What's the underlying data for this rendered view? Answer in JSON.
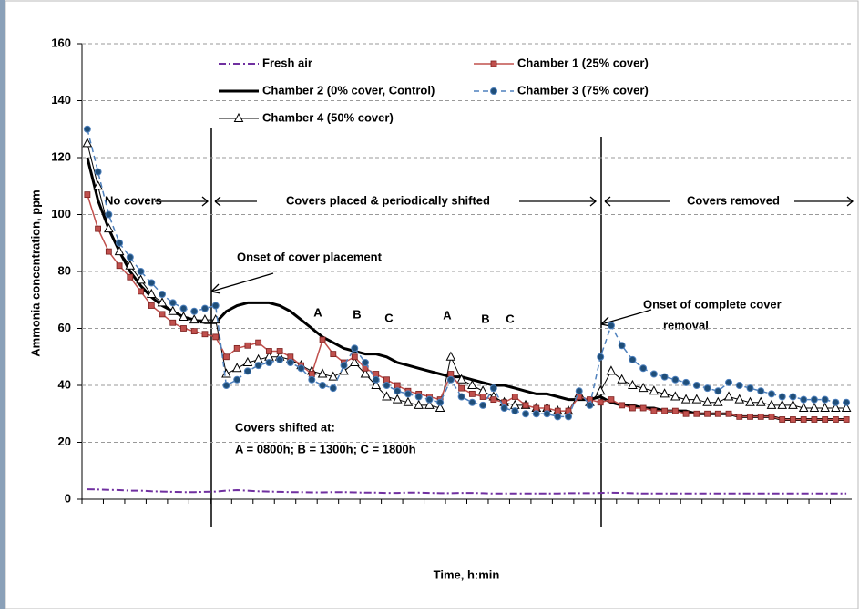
{
  "chart_data": {
    "type": "line",
    "x_label": "Time, h:min",
    "y_label": "Ammonia concentration, ppm",
    "categories": [
      null,
      null,
      null,
      null,
      null,
      null,
      null,
      null,
      null,
      null,
      null,
      null,
      null,
      null,
      null,
      null,
      null,
      null,
      null,
      null,
      null,
      null,
      null,
      null,
      null,
      null,
      null,
      null,
      null,
      null,
      null,
      null,
      null,
      null,
      null,
      null,
      null,
      null,
      null,
      null,
      null,
      null,
      null,
      null,
      null,
      null,
      null,
      null,
      null,
      null,
      null,
      null,
      null,
      null,
      null,
      null,
      null,
      null,
      null,
      null,
      null,
      null,
      null,
      null,
      null,
      null,
      null,
      null,
      null,
      null,
      null,
      null
    ],
    "series": [
      {
        "name": "Fresh air",
        "color": "#7030a0",
        "marker": "none",
        "dash": "dashdot",
        "width": 2,
        "values": [
          3.5,
          3.4,
          3.3,
          3.2,
          3,
          3,
          2.8,
          2.7,
          2.6,
          2.5,
          2.5,
          2.6,
          2.7,
          3,
          3.2,
          3,
          2.8,
          2.7,
          2.6,
          2.5,
          2.5,
          2.4,
          2.4,
          2.5,
          2.5,
          2.4,
          2.3,
          2.3,
          2.2,
          2.2,
          2.3,
          2.3,
          2.2,
          2.1,
          2.1,
          2.2,
          2.2,
          2.1,
          2,
          2,
          2,
          2,
          2,
          2,
          2,
          2.1,
          2.1,
          2.1,
          2.2,
          2.3,
          2.2,
          2.1,
          2,
          2,
          2,
          2,
          2,
          2,
          2,
          2,
          2,
          2,
          2,
          2,
          2,
          2,
          2,
          2,
          2,
          2,
          2,
          2
        ]
      },
      {
        "name": "Chamber 1 (25% cover)",
        "color": "#c0504d",
        "marker": "square",
        "dash": "solid",
        "width": 1.5,
        "values": [
          107,
          95,
          87,
          82,
          78,
          73,
          68,
          65,
          62,
          60,
          59,
          58,
          57,
          50,
          53,
          54,
          55,
          52,
          52,
          50,
          47,
          44,
          56,
          51,
          48,
          50,
          46,
          44,
          42,
          40,
          38,
          37,
          36,
          35,
          44,
          39,
          37,
          36,
          35,
          34,
          36,
          33,
          32,
          32,
          31,
          31,
          36,
          35,
          34,
          35,
          33,
          32,
          32,
          31,
          31,
          31,
          30,
          30,
          30,
          30,
          30,
          29,
          29,
          29,
          29,
          28,
          28,
          28,
          28,
          28,
          28,
          28
        ]
      },
      {
        "name": "Chamber 2 (0% cover, Control)",
        "color": "#000000",
        "marker": "none",
        "dash": "solid",
        "width": 3,
        "values": [
          120,
          105,
          95,
          87,
          80,
          75,
          71,
          68,
          66,
          64,
          63,
          62,
          62,
          66,
          68,
          69,
          69,
          69,
          68,
          66,
          63,
          60,
          57,
          55,
          53,
          52,
          51,
          51,
          50,
          48,
          47,
          46,
          45,
          44,
          43,
          43,
          42,
          41,
          40,
          40,
          39,
          38,
          37,
          37,
          36,
          35,
          35,
          35,
          36,
          34,
          33,
          33,
          32,
          32,
          31,
          31,
          31,
          30,
          30,
          30,
          30,
          29,
          29,
          29,
          29,
          28,
          28,
          28,
          28,
          28,
          28,
          28
        ]
      },
      {
        "name": "Chamber 3 (75% cover)",
        "color": "#4f81bd",
        "marker": "circle",
        "dash": "dashed",
        "width": 1.5,
        "values": [
          130,
          115,
          100,
          90,
          85,
          80,
          76,
          72,
          69,
          67,
          66,
          67,
          68,
          40,
          42,
          45,
          47,
          48,
          49,
          48,
          46,
          42,
          40,
          39,
          47,
          53,
          48,
          42,
          40,
          38,
          37,
          36,
          35,
          34,
          42,
          36,
          34,
          33,
          39,
          32,
          31,
          30,
          30,
          30,
          29,
          29,
          38,
          33,
          50,
          61,
          54,
          49,
          46,
          44,
          43,
          42,
          41,
          40,
          39,
          38,
          41,
          40,
          39,
          38,
          37,
          36,
          36,
          35,
          35,
          35,
          34,
          34
        ]
      },
      {
        "name": "Chamber 4 (50% cover)",
        "color": "#000000",
        "marker": "triangle",
        "dash": "solid",
        "width": 1,
        "values": [
          125,
          110,
          95,
          87,
          82,
          77,
          72,
          69,
          66,
          64,
          63,
          63,
          63,
          44,
          46,
          48,
          49,
          50,
          50,
          49,
          47,
          45,
          44,
          43,
          45,
          48,
          44,
          40,
          36,
          35,
          34,
          33,
          33,
          32,
          50,
          42,
          40,
          38,
          36,
          34,
          33,
          33,
          32,
          32,
          31,
          31,
          37,
          34,
          38,
          45,
          42,
          40,
          39,
          38,
          37,
          36,
          35,
          35,
          34,
          34,
          36,
          35,
          34,
          34,
          33,
          33,
          33,
          32,
          32,
          32,
          32,
          32
        ]
      }
    ],
    "ylim": [
      0,
      160
    ],
    "yticks": [
      0,
      20,
      40,
      60,
      80,
      100,
      120,
      140,
      160
    ],
    "grid": true,
    "annotations": [
      "No covers",
      "Covers placed & periodically shifted",
      "Covers removed",
      "Onset of cover placement",
      "Onset of complete cover",
      "removal",
      "A",
      "B",
      "C",
      "A",
      "B",
      "C",
      "Covers shifted at:",
      "A = 0800h; B = 1300h; C = 1800h"
    ]
  }
}
